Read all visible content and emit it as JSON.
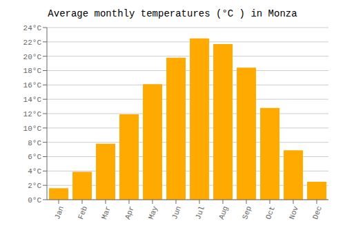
{
  "chart_data": {
    "type": "bar",
    "title": "Average monthly temperatures (°C ) in Monza",
    "categories": [
      "Jan",
      "Feb",
      "Mar",
      "Apr",
      "May",
      "Jun",
      "Jul",
      "Aug",
      "Sep",
      "Oct",
      "Nov",
      "Dec"
    ],
    "values": [
      1.6,
      3.9,
      7.8,
      11.9,
      16.1,
      19.8,
      22.5,
      21.7,
      18.4,
      12.8,
      6.9,
      2.5
    ],
    "color": "#FFAA00",
    "ylim": [
      0,
      24
    ],
    "yticks": [
      {
        "value": 0,
        "label": "0°C"
      },
      {
        "value": 2,
        "label": "2°C"
      },
      {
        "value": 4,
        "label": "4°C"
      },
      {
        "value": 6,
        "label": "6°C"
      },
      {
        "value": 8,
        "label": "8°C"
      },
      {
        "value": 10,
        "label": "10°C"
      },
      {
        "value": 12,
        "label": "12°C"
      },
      {
        "value": 14,
        "label": "14°C"
      },
      {
        "value": 16,
        "label": "16°C"
      },
      {
        "value": 18,
        "label": "18°C"
      },
      {
        "value": 20,
        "label": "20°C"
      },
      {
        "value": 22,
        "label": "22°C"
      },
      {
        "value": 24,
        "label": "24°C"
      }
    ],
    "grid": true
  }
}
